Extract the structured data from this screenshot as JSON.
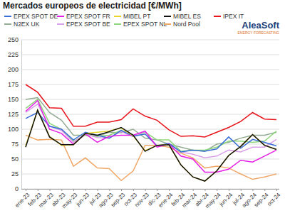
{
  "chart_data": {
    "type": "line",
    "title": "Mercados europeos de electricidad [€/MWh]",
    "logo_text": "AleaSoft",
    "logo_subtext": "ENERGY FORECASTING",
    "categories": [
      "ene-23",
      "feb-23",
      "mar-23",
      "abr-23",
      "may-23",
      "jun-23",
      "jul-23",
      "ago-23",
      "sep-23",
      "oct-23",
      "nov-23",
      "dic-23",
      "ene-24",
      "feb-24",
      "mar-24",
      "abr-24",
      "may-24",
      "jun-24",
      "jul-24",
      "ago-24",
      "sep-24",
      "oct-24"
    ],
    "ylim": [
      0,
      250
    ],
    "yticks": [
      0,
      25,
      50,
      75,
      100,
      125,
      150,
      175,
      200,
      225,
      250
    ],
    "grid": true,
    "legend": "top",
    "series": [
      {
        "name": "EPEX SPOT DE",
        "color": "#3a6fd8",
        "values": [
          118,
          128,
          105,
          100,
          82,
          95,
          90,
          85,
          98,
          88,
          92,
          72,
          76,
          62,
          65,
          63,
          67,
          87,
          68,
          83,
          78,
          72
        ]
      },
      {
        "name": "EPEX SPOT FR",
        "color": "#e41ee4",
        "values": [
          130,
          148,
          100,
          93,
          75,
          92,
          78,
          88,
          90,
          90,
          97,
          70,
          75,
          55,
          50,
          28,
          28,
          33,
          48,
          45,
          55,
          65
        ]
      },
      {
        "name": "MIBEL PT",
        "color": "#e8d42a",
        "values": [
          72,
          132,
          88,
          73,
          74,
          93,
          95,
          97,
          102,
          89,
          64,
          73,
          74,
          40,
          20,
          13,
          30,
          56,
          71,
          91,
          73,
          66
        ]
      },
      {
        "name": "MIBEL ES",
        "color": "#111111",
        "values": [
          70,
          132,
          87,
          74,
          74,
          93,
          90,
          96,
          103,
          90,
          63,
          73,
          74,
          40,
          20,
          13,
          30,
          56,
          71,
          91,
          73,
          66
        ]
      },
      {
        "name": "IPEX IT",
        "color": "#e8141c",
        "values": [
          175,
          162,
          136,
          135,
          105,
          105,
          112,
          112,
          116,
          134,
          122,
          115,
          99,
          88,
          89,
          87,
          95,
          103,
          113,
          128,
          117,
          116
        ]
      },
      {
        "name": "N2EX UK",
        "color": "#93ab93",
        "values": [
          150,
          153,
          128,
          115,
          90,
          90,
          88,
          95,
          94,
          100,
          85,
          82,
          75,
          70,
          65,
          63,
          75,
          78,
          85,
          90,
          90,
          95
        ]
      },
      {
        "name": "EPEX SPOT BE",
        "color": "#d8a0e8",
        "values": [
          128,
          142,
          105,
          98,
          78,
          92,
          86,
          85,
          96,
          88,
          96,
          72,
          75,
          62,
          58,
          52,
          55,
          65,
          62,
          70,
          70,
          83
        ]
      },
      {
        "name": "EPEX SPOT NL",
        "color": "#8ed67a",
        "values": [
          135,
          150,
          110,
          100,
          80,
          90,
          88,
          90,
          98,
          88,
          95,
          82,
          82,
          63,
          65,
          65,
          70,
          80,
          80,
          78,
          80,
          97
        ]
      },
      {
        "name": "Nord Pool",
        "color": "#f0a868",
        "values": [
          90,
          82,
          83,
          82,
          38,
          52,
          35,
          34,
          14,
          30,
          73,
          73,
          70,
          60,
          52,
          35,
          38,
          35,
          25,
          16,
          20,
          25
        ]
      }
    ]
  }
}
